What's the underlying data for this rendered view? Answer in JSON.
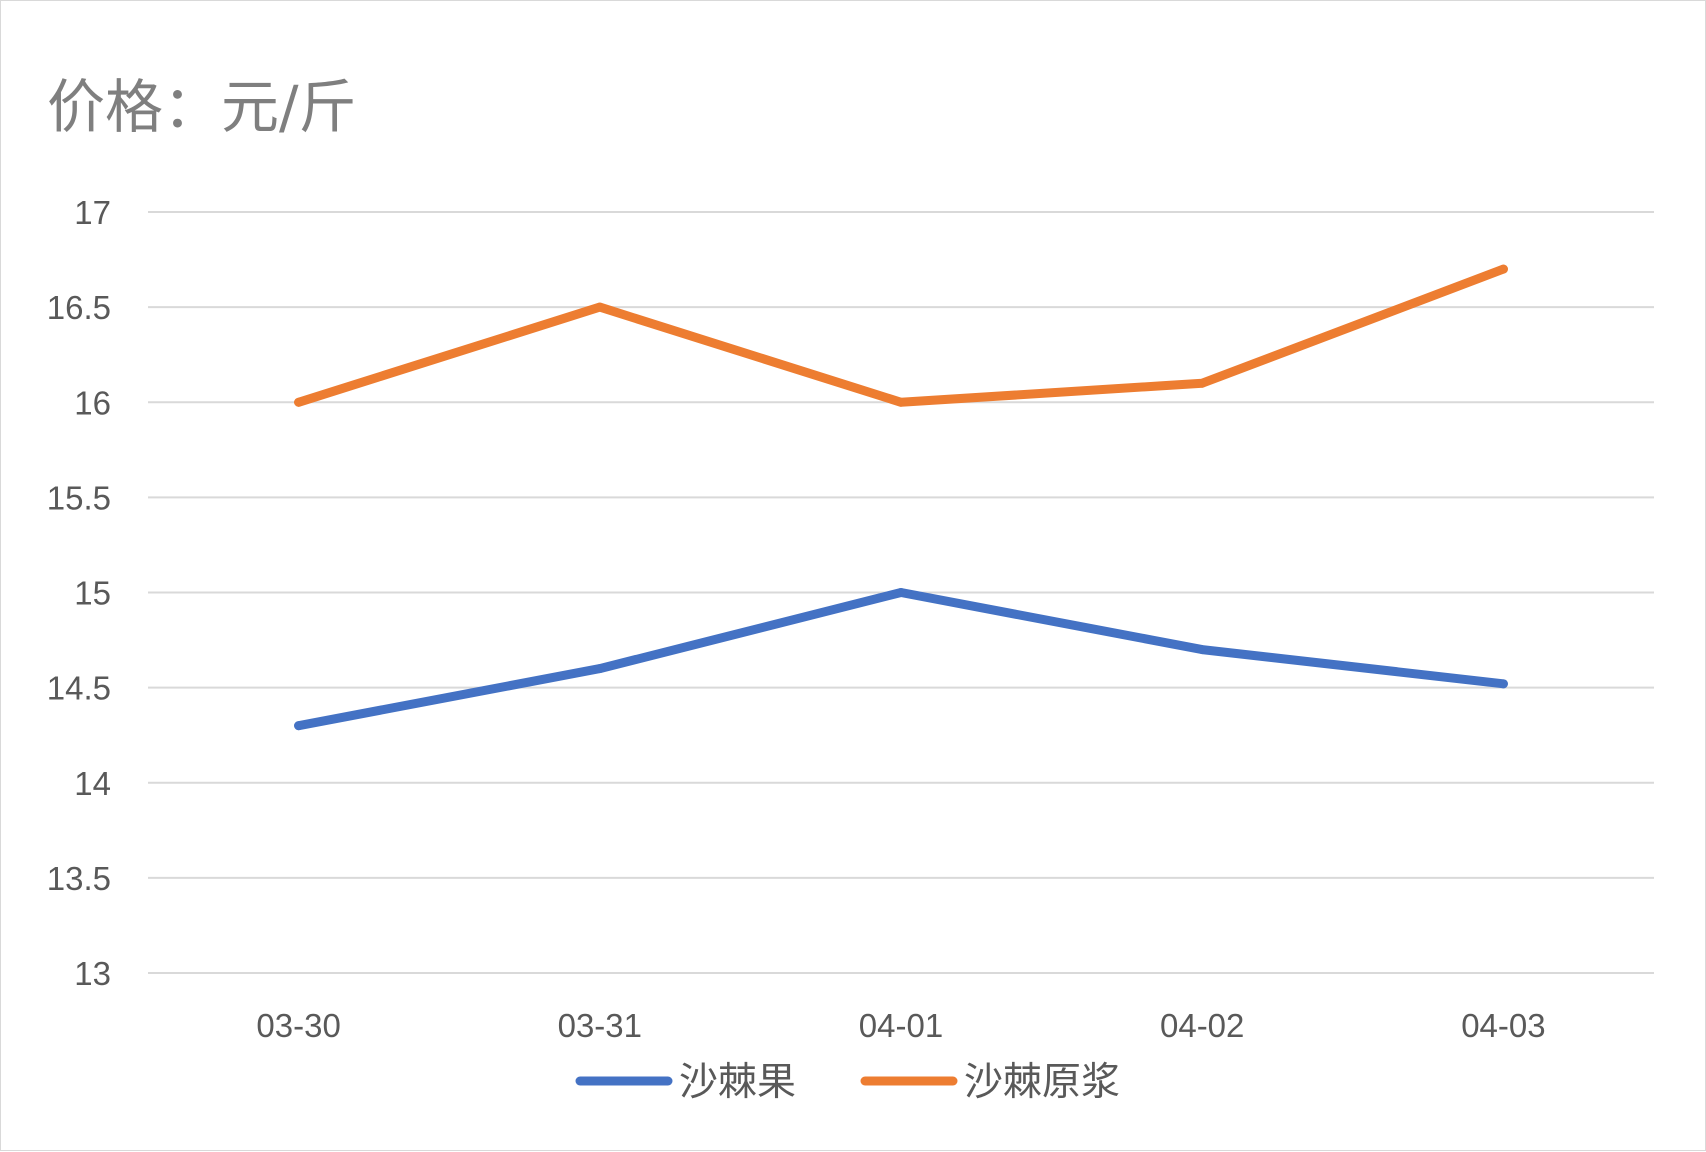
{
  "chart_data": {
    "type": "line",
    "unit_label": "价格：元/斤",
    "categories": [
      "03-30",
      "03-31",
      "04-01",
      "04-02",
      "04-03"
    ],
    "series": [
      {
        "name": "沙棘果",
        "color": "#4472c4",
        "values": [
          14.3,
          14.6,
          15.0,
          14.7,
          14.52
        ]
      },
      {
        "name": "沙棘原浆",
        "color": "#ed7d31",
        "values": [
          16.0,
          16.5,
          16.0,
          16.1,
          16.7
        ]
      }
    ],
    "ylim": [
      13,
      17
    ],
    "yticks": [
      "13",
      "13.5",
      "14",
      "14.5",
      "15",
      "15.5",
      "16",
      "16.5",
      "17"
    ],
    "grid": true,
    "legend_position": "bottom"
  }
}
